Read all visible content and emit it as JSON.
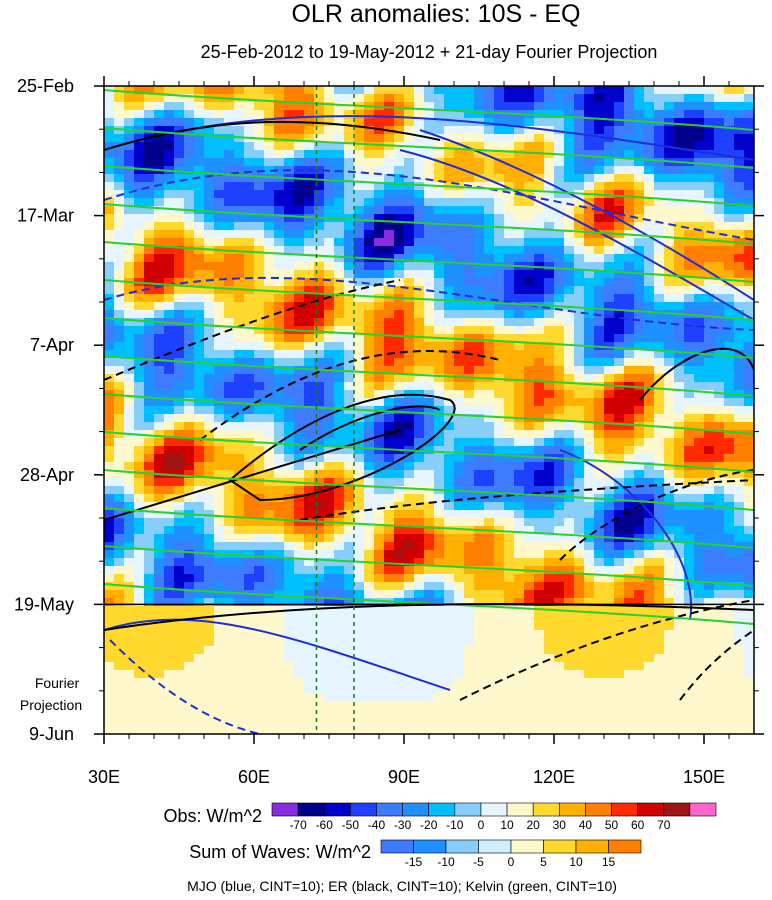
{
  "chart_data": {
    "type": "heatmap",
    "title": "OLR anomalies: 10S - EQ",
    "subtitle": "25-Feb-2012 to 19-May-2012 + 21-day Fourier Projection",
    "x_ticks": [
      "30E",
      "60E",
      "90E",
      "120E",
      "150E"
    ],
    "x_tick_values": [
      30,
      60,
      90,
      120,
      150
    ],
    "xlim": [
      30,
      160
    ],
    "y_ticks": [
      "25-Feb",
      "17-Mar",
      "7-Apr",
      "28-Apr",
      "19-May",
      "9-Jun"
    ],
    "y_tick_days": [
      0,
      21,
      42,
      63,
      84,
      105
    ],
    "ylim_days": [
      0,
      105
    ],
    "projection_label": [
      "Fourier",
      "Projection"
    ],
    "dashed_reference_lines_lon": [
      72.5,
      80
    ],
    "obs_colorbar": {
      "label": "Obs: W/m^2",
      "ticks": [
        "-70",
        "-60",
        "-50",
        "-40",
        "-30",
        "-20",
        "-10",
        "0",
        "10",
        "20",
        "30",
        "40",
        "50",
        "60",
        "70"
      ],
      "colors": [
        "#8a2be2",
        "#00008b",
        "#0000cd",
        "#1e40ff",
        "#3d7cff",
        "#1e90ff",
        "#00bfff",
        "#87cefa",
        "#e6f5ff",
        "#fff8cc",
        "#ffd92e",
        "#ffb000",
        "#ff7f00",
        "#ff2a00",
        "#d10000",
        "#a01414",
        "#ff66cc"
      ]
    },
    "waves_colorbar": {
      "label": "Sum of Waves: W/m^2",
      "ticks": [
        "-15",
        "-10",
        "-5",
        "0",
        "5",
        "10",
        "15"
      ],
      "colors": [
        "#3d7cff",
        "#1e90ff",
        "#87cefa",
        "#cfeeff",
        "#fff8cc",
        "#ffd92e",
        "#ffb000",
        "#ff7f00"
      ]
    },
    "contours_legend": "MJO (blue, CINT=10); ER (black, CINT=10); Kelvin (green, CINT=10)",
    "contour_colors": {
      "MJO": "#1f2fd6",
      "ER": "#000000",
      "Kelvin": "#27d12e"
    }
  }
}
